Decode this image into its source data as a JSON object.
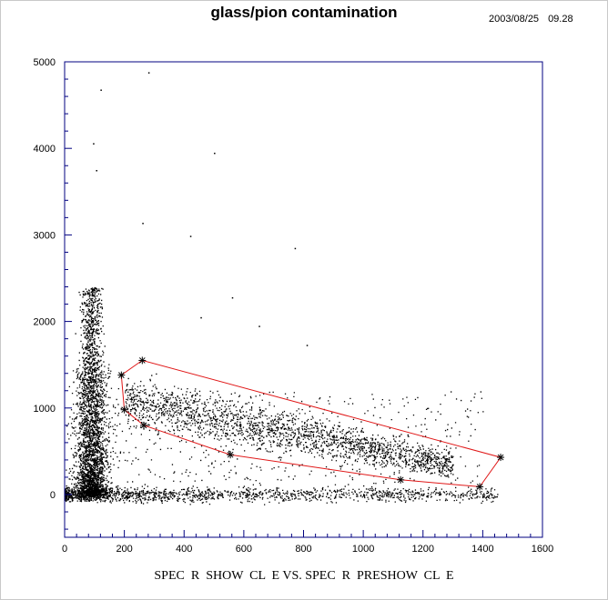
{
  "header": {
    "date": "2003/08/25",
    "time": "09.28"
  },
  "chart_data": {
    "type": "scatter",
    "title": "glass/pion contamination",
    "xlabel": "SPEC  R  SHOW  CL  E VS. SPEC  R  PRESHOW  CL  E",
    "ylabel": "",
    "xlim": [
      0,
      1600
    ],
    "ylim": [
      -500,
      5000
    ],
    "x_ticks": [
      0,
      200,
      400,
      600,
      800,
      1000,
      1200,
      1400,
      1600
    ],
    "y_ticks": [
      0,
      1000,
      2000,
      3000,
      4000,
      5000
    ],
    "grid": false,
    "colors": {
      "points": "#000000",
      "cut": "#e01818",
      "axes": "#000080"
    },
    "cut_polygon": {
      "x": [
        190,
        200,
        265,
        555,
        1125,
        1390,
        1460,
        260
      ],
      "y": [
        1380,
        980,
        800,
        460,
        170,
        90,
        430,
        1550
      ]
    },
    "density_regions": [
      {
        "name": "pion-core",
        "x_center": 90,
        "x_spread": 30,
        "y_from": 0,
        "y_to": 1500
      },
      {
        "name": "baseline-band",
        "x_from": 0,
        "x_to": 1450,
        "y_center": 0,
        "y_spread": 40
      },
      {
        "name": "electron-band",
        "x_from": 200,
        "x_to": 1300,
        "y_start": 1100,
        "y_end": 350
      }
    ],
    "outliers": {
      "x": [
        280,
        500,
        420,
        260,
        770,
        810,
        120,
        95,
        105,
        455,
        650,
        560
      ],
      "y": [
        4880,
        3950,
        2990,
        3140,
        2850,
        1730,
        4680,
        4060,
        3750,
        2050,
        1950,
        2280
      ]
    }
  }
}
